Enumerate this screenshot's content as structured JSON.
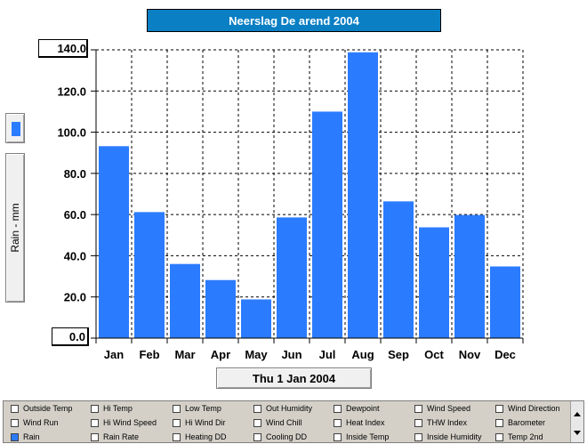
{
  "chart_data": {
    "type": "bar",
    "title": "Neerslag De arend 2004",
    "ylabel": "Rain - mm",
    "xlabel": "Thu 1 Jan 2004",
    "categories": [
      "Jan",
      "Feb",
      "Mar",
      "Apr",
      "May",
      "Jun",
      "Jul",
      "Aug",
      "Sep",
      "Oct",
      "Nov",
      "Dec"
    ],
    "values": [
      93.2,
      61.2,
      36.0,
      28.2,
      18.8,
      58.6,
      110.0,
      138.8,
      66.4,
      53.8,
      59.8,
      34.8
    ],
    "ylim": [
      0,
      140
    ],
    "yticks": [
      "0.0",
      "20.0",
      "40.0",
      "60.0",
      "80.0",
      "100.0",
      "120.0",
      "140.0"
    ],
    "ymax_label": "140.0",
    "ymin_label": "0.0",
    "bar_color": "#2b7bff",
    "grid": true,
    "grid_style": "dashed"
  },
  "options": {
    "rows": [
      [
        "Outside Temp",
        "Hi Temp",
        "Low Temp",
        "Out Humidity",
        "Dewpoint",
        "Wind Speed",
        "Wind Direction"
      ],
      [
        "Wind Run",
        "Hi Wind Speed",
        "Hi Wind Dir",
        "Wind Chill",
        "Heat Index",
        "THW Index",
        "Barometer"
      ],
      [
        "Rain",
        "Rain Rate",
        "Heating DD",
        "Cooling DD",
        "Inside Temp",
        "Inside Humidity",
        "Temp 2nd"
      ]
    ],
    "checked": [
      "Rain"
    ]
  },
  "colors": {
    "title_bg": "#0a7fc4",
    "bar": "#2b7bff",
    "panel": "#d4d0c8"
  }
}
